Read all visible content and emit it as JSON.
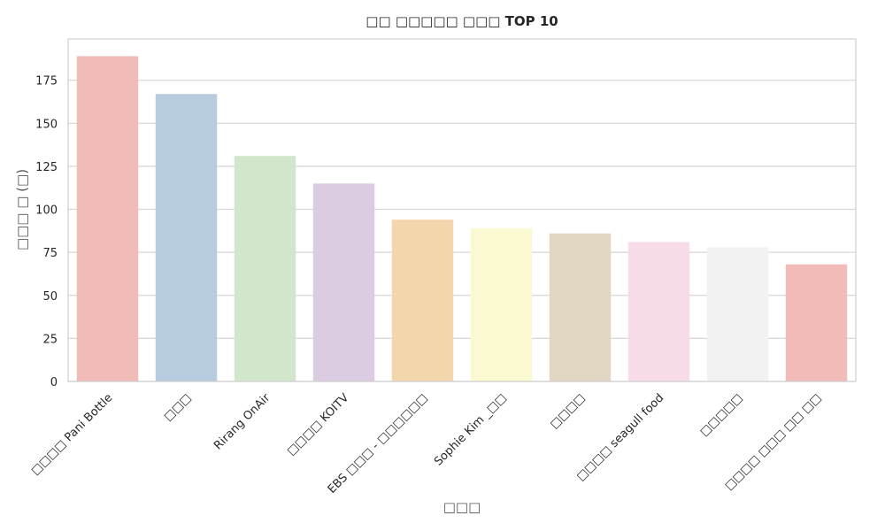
{
  "chart_data": {
    "type": "bar",
    "title": "□□ □□□□□ □□□ TOP 10",
    "xlabel": "□□□",
    "ylabel": "□□□ □ (□)",
    "categories": [
      "□□□□ Pani Bottle",
      "□□□",
      "Rirang OnAir",
      "□□□□ KOITV",
      "EBS □□□ - □□□□□□",
      "Sophie Kim _□□",
      "□□□□",
      "□□□□ seagull food",
      "□□□□□",
      "□□□□ □□□ □□ □□"
    ],
    "values": [
      189,
      167,
      131,
      115,
      94,
      89,
      86,
      81,
      78,
      68
    ],
    "colors": [
      "#f1bbb8",
      "#b8ccdf",
      "#d1e6ca",
      "#dbcce2",
      "#f3d6ac",
      "#fbf9d2",
      "#e1d6c1",
      "#f7dbe9",
      "#f2f2f2",
      "#f1bbb8"
    ],
    "ylim": [
      0,
      199
    ],
    "yticks": [
      0,
      25,
      50,
      75,
      100,
      125,
      150,
      175
    ],
    "grid": true
  }
}
